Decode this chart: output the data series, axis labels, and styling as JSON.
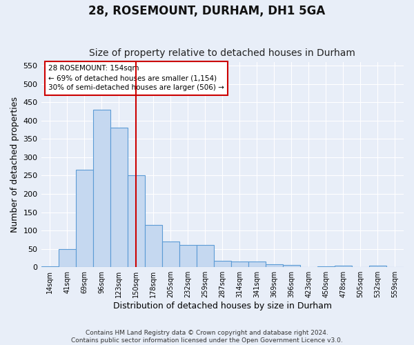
{
  "title": "28, ROSEMOUNT, DURHAM, DH1 5GA",
  "subtitle": "Size of property relative to detached houses in Durham",
  "xlabel": "Distribution of detached houses by size in Durham",
  "ylabel": "Number of detached properties",
  "categories": [
    "14sqm",
    "41sqm",
    "69sqm",
    "96sqm",
    "123sqm",
    "150sqm",
    "178sqm",
    "205sqm",
    "232sqm",
    "259sqm",
    "287sqm",
    "314sqm",
    "341sqm",
    "369sqm",
    "396sqm",
    "423sqm",
    "450sqm",
    "478sqm",
    "505sqm",
    "532sqm",
    "559sqm"
  ],
  "values": [
    3,
    50,
    265,
    430,
    380,
    250,
    115,
    70,
    60,
    60,
    17,
    15,
    15,
    8,
    6,
    1,
    3,
    5,
    1,
    5,
    0
  ],
  "bar_color": "#c5d8f0",
  "bar_edge_color": "#5b9bd5",
  "vline_x": 5,
  "vline_color": "#cc0000",
  "annotation_text": "28 ROSEMOUNT: 154sqm\n← 69% of detached houses are smaller (1,154)\n30% of semi-detached houses are larger (506) →",
  "annotation_box_color": "#ffffff",
  "annotation_box_edge": "#cc0000",
  "ylim": [
    0,
    560
  ],
  "yticks": [
    0,
    50,
    100,
    150,
    200,
    250,
    300,
    350,
    400,
    450,
    500,
    550
  ],
  "footer1": "Contains HM Land Registry data © Crown copyright and database right 2024.",
  "footer2": "Contains public sector information licensed under the Open Government Licence v3.0.",
  "bg_color": "#e8eef8",
  "title_fontsize": 12,
  "subtitle_fontsize": 10,
  "font_family": "DejaVu Sans"
}
